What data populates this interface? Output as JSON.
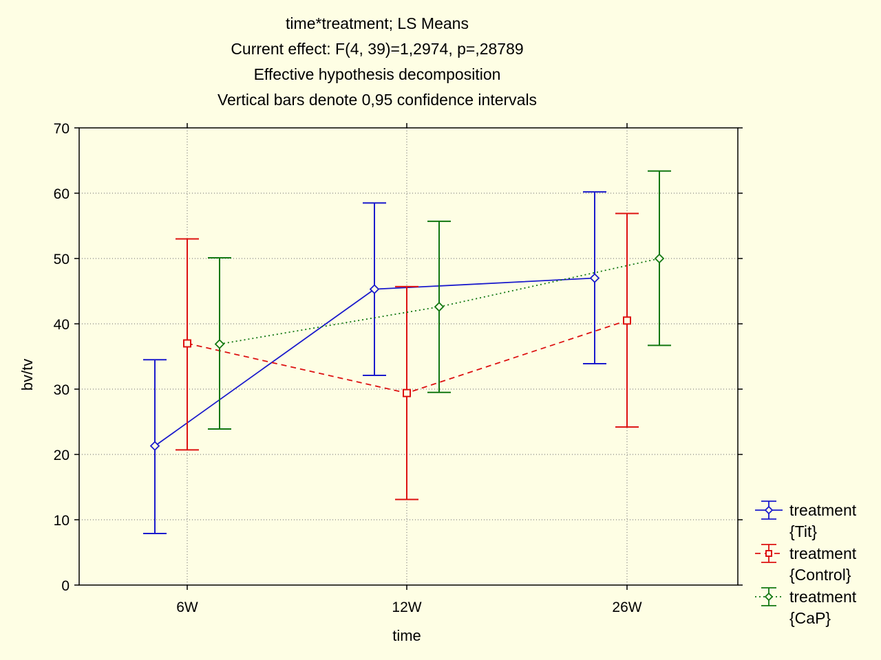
{
  "chart_data": {
    "type": "line",
    "title_lines": [
      "time*treatment; LS Means",
      "Current effect: F(4, 39)=1,2974, p=,28789",
      "Effective hypothesis decomposition",
      "Vertical bars denote 0,95 confidence intervals"
    ],
    "xlabel": "time",
    "ylabel": "bv/tv",
    "categories": [
      "6W",
      "12W",
      "26W"
    ],
    "ylim": [
      0,
      70
    ],
    "yticks": [
      "0",
      "10",
      "20",
      "30",
      "40",
      "50",
      "60",
      "70"
    ],
    "grid": true,
    "legend_position": "right",
    "series": [
      {
        "name_line1": "treatment",
        "name_line2": "{Tit}",
        "color": "#1a1acc",
        "marker": "diamond",
        "line_style": "solid",
        "values": [
          21.3,
          45.3,
          47.0
        ],
        "ci_lower": [
          7.9,
          32.1,
          33.9
        ],
        "ci_upper": [
          34.5,
          58.5,
          60.2
        ]
      },
      {
        "name_line1": "treatment",
        "name_line2": "{Control}",
        "color": "#dd1111",
        "marker": "square",
        "line_style": "dashed",
        "values": [
          37.0,
          29.4,
          40.5
        ],
        "ci_lower": [
          20.7,
          13.1,
          24.2
        ],
        "ci_upper": [
          53.0,
          45.7,
          56.9
        ]
      },
      {
        "name_line1": "treatment",
        "name_line2": "{CaP}",
        "color": "#117711",
        "marker": "diamond",
        "line_style": "dotted",
        "values": [
          36.9,
          42.6,
          50.0
        ],
        "ci_lower": [
          23.9,
          29.5,
          36.7
        ],
        "ci_upper": [
          50.1,
          55.7,
          63.4
        ]
      }
    ]
  }
}
